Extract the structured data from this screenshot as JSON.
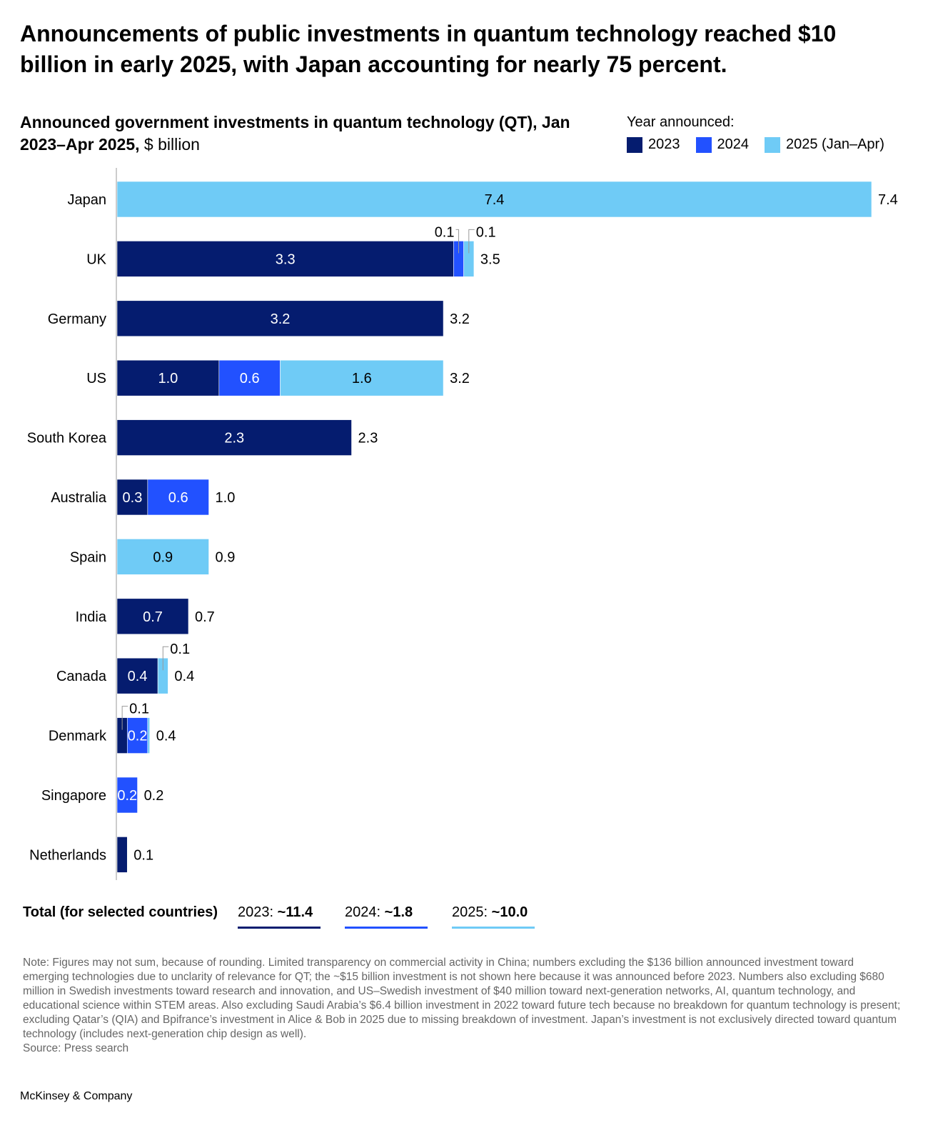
{
  "headline": "Announcements of public investments in quantum technology reached $10 billion in early 2025, with Japan accounting for nearly 75 percent.",
  "colors": {
    "y2023": "#051c6f",
    "y2024": "#2251ff",
    "y2025": "#6fcbf6"
  },
  "chart_data": {
    "type": "bar",
    "orientation": "horizontal-stacked",
    "title": "Announced government investments in quantum technology (QT), Jan 2023–Apr 2025,",
    "unit": "$ billion",
    "legend_title": "Year announced:",
    "legend_position": "top-right",
    "categories": [
      "Japan",
      "UK",
      "Germany",
      "US",
      "South Korea",
      "Australia",
      "Spain",
      "India",
      "Canada",
      "Denmark",
      "Singapore",
      "Netherlands"
    ],
    "series": [
      {
        "name": "2023",
        "values": [
          0,
          3.3,
          3.2,
          1.0,
          2.3,
          0.3,
          0,
          0.7,
          0.4,
          0.1,
          0,
          0.1
        ]
      },
      {
        "name": "2024",
        "values": [
          0,
          0.1,
          0,
          0.6,
          0,
          0.6,
          0,
          0,
          0,
          0.2,
          0.2,
          0
        ]
      },
      {
        "name": "2025 (Jan–Apr)",
        "values": [
          7.4,
          0.1,
          0,
          1.6,
          0,
          0,
          0.9,
          0,
          0.1,
          0.02,
          0,
          0
        ]
      }
    ],
    "segment_labels": [
      [
        "",
        "",
        "7.4"
      ],
      [
        "3.3",
        "0.1",
        "0.1"
      ],
      [
        "3.2",
        "",
        ""
      ],
      [
        "1.0",
        "0.6",
        "1.6"
      ],
      [
        "2.3",
        "",
        ""
      ],
      [
        "0.3",
        "0.6",
        ""
      ],
      [
        "",
        "",
        "0.9"
      ],
      [
        "0.7",
        "",
        ""
      ],
      [
        "0.4",
        "",
        "0.1"
      ],
      [
        "0.1",
        "0.2",
        ""
      ],
      [
        "",
        "0.2",
        ""
      ],
      [
        "",
        "",
        ""
      ]
    ],
    "totals": [
      "7.4",
      "3.5",
      "3.2",
      "3.2",
      "2.3",
      "1.0",
      "0.9",
      "0.7",
      "0.4",
      "0.4",
      "0.2",
      "0.1"
    ],
    "xlim": [
      0,
      7.4
    ]
  },
  "totals_row": {
    "label": "Total (for selected countries)",
    "items": [
      {
        "year": "2023:",
        "value": "~11.4"
      },
      {
        "year": "2024:",
        "value": "~1.8"
      },
      {
        "year": "2025:",
        "value": "~10.0"
      }
    ]
  },
  "note": "Note: Figures may not sum, because of rounding. Limited transparency on commercial activity in China; numbers excluding the $136 billion announced investment toward emerging technologies due to unclarity of relevance for QT; the ~$15 billion investment is not shown here because it was announced before 2023. Numbers also excluding $680 million in Swedish investments toward research and innovation, and US–Swedish investment of $40 million toward next-generation networks, AI, quantum technology, and educational science within STEM areas. Also excluding Saudi Arabia’s $6.4 billion investment in 2022 toward future tech because no breakdown for quantum technology is present; excluding Qatar’s (QIA) and Bpifrance’s investment in Alice & Bob in 2025 due to missing breakdown of investment. Japan’s investment is not exclusively directed toward quantum technology (includes next-generation chip design as well).",
  "source": "Source: Press search",
  "brand": "McKinsey & Company"
}
